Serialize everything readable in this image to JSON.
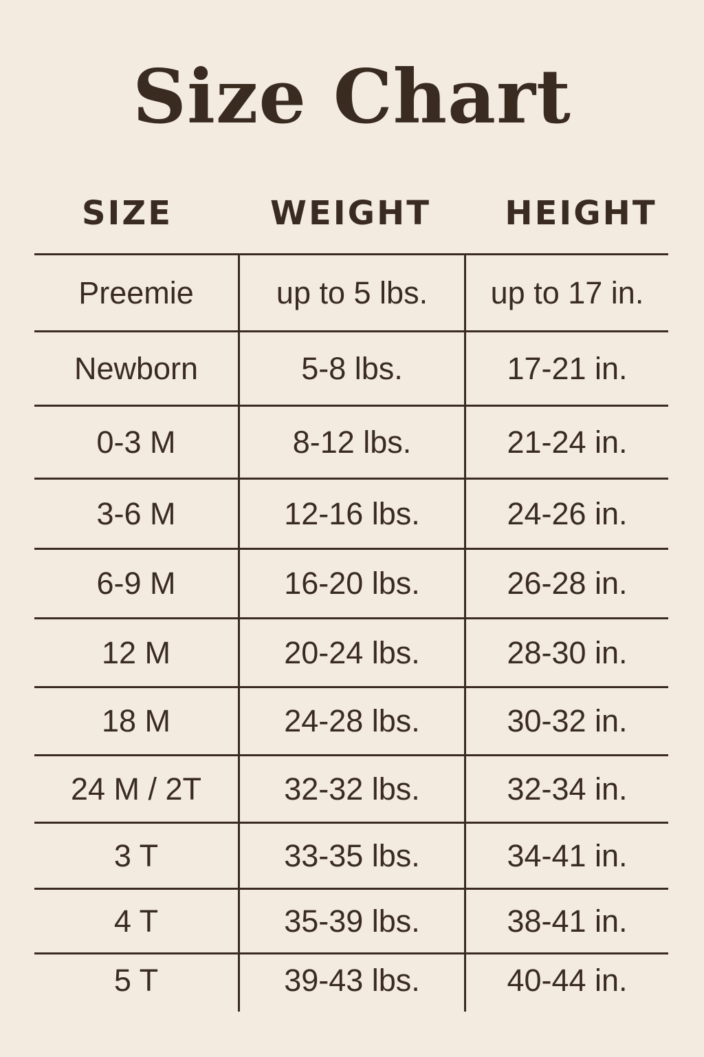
{
  "title": "Size Chart",
  "colors": {
    "background": "#f3ebdf",
    "text": "#3a2b20"
  },
  "table": {
    "headers": [
      "SIZE",
      "WEIGHT",
      "HEIGHT"
    ],
    "rows": [
      [
        "Preemie",
        "up to 5 lbs.",
        "up to 17 in."
      ],
      [
        "Newborn",
        "5-8 lbs.",
        "17-21 in."
      ],
      [
        "0-3 M",
        "8-12 lbs.",
        "21-24 in."
      ],
      [
        "3-6 M",
        "12-16 lbs.",
        "24-26 in."
      ],
      [
        "6-9 M",
        "16-20 lbs.",
        "26-28 in."
      ],
      [
        "12 M",
        "20-24 lbs.",
        "28-30 in."
      ],
      [
        "18 M",
        "24-28 lbs.",
        "30-32 in."
      ],
      [
        "24 M / 2T",
        "32-32 lbs.",
        "32-34 in."
      ],
      [
        "3 T",
        "33-35 lbs.",
        "34-41 in."
      ],
      [
        "4 T",
        "35-39 lbs.",
        "38-41 in."
      ],
      [
        "5 T",
        "39-43 lbs.",
        "40-44 in."
      ]
    ]
  }
}
